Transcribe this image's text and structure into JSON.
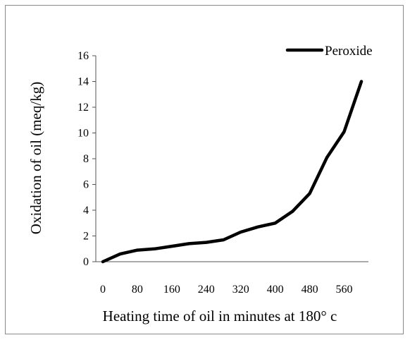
{
  "chart_data": {
    "type": "line",
    "title": "",
    "xlabel": "Heating time of oil in minutes at 180° c",
    "ylabel": "Oxidation of oil (meq/kg)",
    "xlim": [
      0,
      600
    ],
    "ylim": [
      0,
      16
    ],
    "x_ticks": [
      "0",
      "80",
      "160",
      "240",
      "320",
      "400",
      "480",
      "560"
    ],
    "y_ticks": [
      "0",
      "2",
      "4",
      "6",
      "8",
      "10",
      "12",
      "14",
      "16"
    ],
    "grid": false,
    "legend_position": "top-right",
    "series": [
      {
        "name": "Peroxide",
        "color": "#000000",
        "x": [
          0,
          40,
          80,
          120,
          160,
          200,
          240,
          280,
          320,
          360,
          400,
          440,
          480,
          520,
          560,
          600
        ],
        "y": [
          0,
          0.6,
          0.9,
          1.0,
          1.2,
          1.4,
          1.5,
          1.7,
          2.3,
          2.7,
          3.0,
          3.9,
          5.3,
          8.1,
          10.1,
          14.0
        ]
      }
    ]
  }
}
